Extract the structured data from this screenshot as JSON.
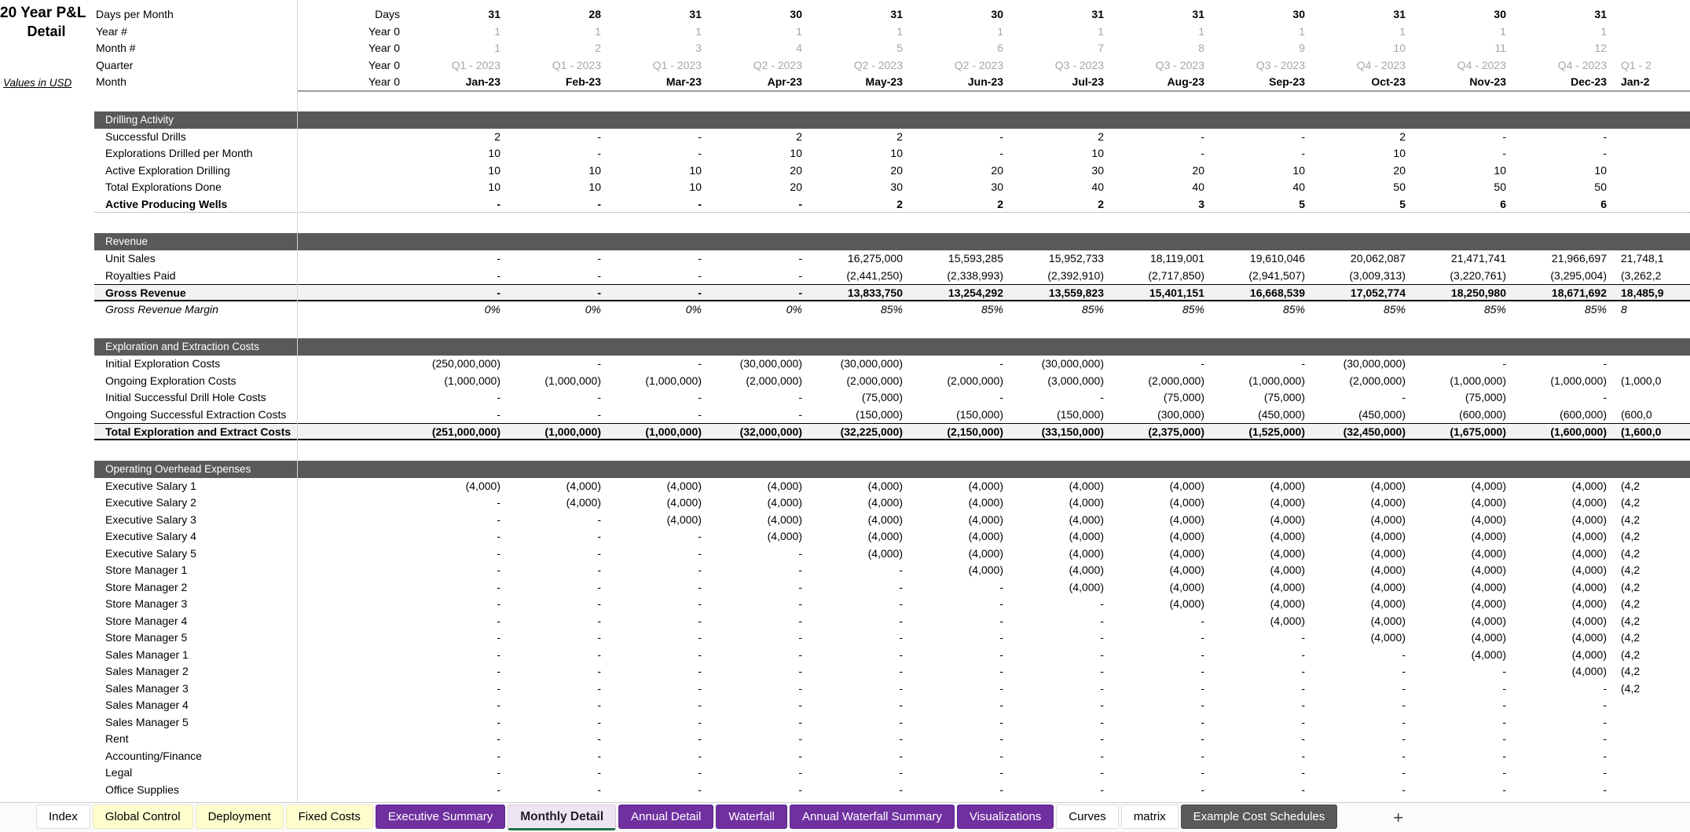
{
  "title": {
    "line1": "20 Year P&L",
    "line2": "Detail",
    "note": "Values in USD"
  },
  "colors": {
    "section_bar": "#595959",
    "total_band": "#f2f2f2",
    "muted_text": "#a6a6a6",
    "tab_purple": "#7030a0",
    "tab_yellow": "#fdfdce",
    "tab_dark": "#595959",
    "active_tab_bg": "#ede6f2",
    "active_tab_underline": "#217346"
  },
  "header_rows": [
    {
      "label": "Days per Month",
      "first": "Days",
      "style": "days",
      "values": [
        "31",
        "28",
        "31",
        "30",
        "31",
        "30",
        "31",
        "31",
        "30",
        "31",
        "30",
        "31"
      ],
      "partial": ""
    },
    {
      "label": "Year #",
      "first": "Year 0",
      "style": "gray",
      "values": [
        "1",
        "1",
        "1",
        "1",
        "1",
        "1",
        "1",
        "1",
        "1",
        "1",
        "1",
        "1"
      ],
      "partial": ""
    },
    {
      "label": "Month #",
      "first": "Year 0",
      "style": "gray",
      "values": [
        "1",
        "2",
        "3",
        "4",
        "5",
        "6",
        "7",
        "8",
        "9",
        "10",
        "11",
        "12"
      ],
      "partial": ""
    },
    {
      "label": "Quarter",
      "first": "Year 0",
      "style": "gray",
      "values": [
        "Q1 - 2023",
        "Q1 - 2023",
        "Q1 - 2023",
        "Q2 - 2023",
        "Q2 - 2023",
        "Q2 - 2023",
        "Q3 - 2023",
        "Q3 - 2023",
        "Q3 - 2023",
        "Q4 - 2023",
        "Q4 - 2023",
        "Q4 - 2023"
      ],
      "partial": "Q1 - 2"
    },
    {
      "label": "Month",
      "first": "Year 0",
      "style": "month",
      "values": [
        "Jan-23",
        "Feb-23",
        "Mar-23",
        "Apr-23",
        "May-23",
        "Jun-23",
        "Jul-23",
        "Aug-23",
        "Sep-23",
        "Oct-23",
        "Nov-23",
        "Dec-23"
      ],
      "partial": "Jan-2"
    }
  ],
  "sections": [
    {
      "title": "Drilling Activity",
      "rows": [
        {
          "label": "Successful Drills",
          "style": "normal",
          "values": [
            "2",
            "-",
            "-",
            "2",
            "2",
            "-",
            "2",
            "-",
            "-",
            "2",
            "-",
            "-"
          ],
          "partial": ""
        },
        {
          "label": "Explorations Drilled per Month",
          "style": "normal",
          "values": [
            "10",
            "-",
            "-",
            "10",
            "10",
            "-",
            "10",
            "-",
            "-",
            "10",
            "-",
            "-"
          ],
          "partial": ""
        },
        {
          "label": "Active Exploration Drilling",
          "style": "normal",
          "values": [
            "10",
            "10",
            "10",
            "20",
            "20",
            "20",
            "30",
            "20",
            "10",
            "20",
            "10",
            "10"
          ],
          "partial": ""
        },
        {
          "label": "Total Explorations Done",
          "style": "normal",
          "values": [
            "10",
            "10",
            "10",
            "20",
            "30",
            "30",
            "40",
            "40",
            "40",
            "50",
            "50",
            "50"
          ],
          "partial": ""
        },
        {
          "label": "Active Producing Wells",
          "style": "dotted",
          "values": [
            "-",
            "-",
            "-",
            "-",
            "2",
            "2",
            "2",
            "3",
            "5",
            "5",
            "6",
            "6"
          ],
          "partial": ""
        }
      ]
    },
    {
      "title": "Revenue",
      "rows": [
        {
          "label": "Unit Sales",
          "style": "normal",
          "values": [
            "-",
            "-",
            "-",
            "-",
            "16,275,000",
            "15,593,285",
            "15,952,733",
            "18,119,001",
            "19,610,046",
            "20,062,087",
            "21,471,741",
            "21,966,697"
          ],
          "partial": "21,748,1"
        },
        {
          "label": "Royalties Paid",
          "style": "normal",
          "values": [
            "-",
            "-",
            "-",
            "-",
            "(2,441,250)",
            "(2,338,993)",
            "(2,392,910)",
            "(2,717,850)",
            "(2,941,507)",
            "(3,009,313)",
            "(3,220,761)",
            "(3,295,004)"
          ],
          "partial": "(3,262,2"
        },
        {
          "label": "Gross Revenue",
          "style": "total",
          "values": [
            "-",
            "-",
            "-",
            "-",
            "13,833,750",
            "13,254,292",
            "13,559,823",
            "15,401,151",
            "16,668,539",
            "17,052,774",
            "18,250,980",
            "18,671,692"
          ],
          "partial": "18,485,9"
        },
        {
          "label": "Gross Revenue Margin",
          "style": "italic",
          "values": [
            "0%",
            "0%",
            "0%",
            "0%",
            "85%",
            "85%",
            "85%",
            "85%",
            "85%",
            "85%",
            "85%",
            "85%"
          ],
          "partial": "8"
        }
      ]
    },
    {
      "title": "Exploration and Extraction Costs",
      "rows": [
        {
          "label": "Initial Exploration Costs",
          "style": "normal",
          "values": [
            "(250,000,000)",
            "-",
            "-",
            "(30,000,000)",
            "(30,000,000)",
            "-",
            "(30,000,000)",
            "-",
            "-",
            "(30,000,000)",
            "-",
            "-"
          ],
          "partial": ""
        },
        {
          "label": "Ongoing Exploration Costs",
          "style": "normal",
          "values": [
            "(1,000,000)",
            "(1,000,000)",
            "(1,000,000)",
            "(2,000,000)",
            "(2,000,000)",
            "(2,000,000)",
            "(3,000,000)",
            "(2,000,000)",
            "(1,000,000)",
            "(2,000,000)",
            "(1,000,000)",
            "(1,000,000)"
          ],
          "partial": "(1,000,0"
        },
        {
          "label": "Initial Successful Drill Hole Costs",
          "style": "normal",
          "values": [
            "-",
            "-",
            "-",
            "-",
            "(75,000)",
            "-",
            "-",
            "(75,000)",
            "(75,000)",
            "-",
            "(75,000)",
            "-"
          ],
          "partial": ""
        },
        {
          "label": "Ongoing Successful Extraction Costs",
          "style": "normal",
          "values": [
            "-",
            "-",
            "-",
            "-",
            "(150,000)",
            "(150,000)",
            "(150,000)",
            "(300,000)",
            "(450,000)",
            "(450,000)",
            "(600,000)",
            "(600,000)"
          ],
          "partial": "(600,0"
        },
        {
          "label": "Total Exploration and Extract Costs",
          "style": "total",
          "values": [
            "(251,000,000)",
            "(1,000,000)",
            "(1,000,000)",
            "(32,000,000)",
            "(32,225,000)",
            "(2,150,000)",
            "(33,150,000)",
            "(2,375,000)",
            "(1,525,000)",
            "(32,450,000)",
            "(1,675,000)",
            "(1,600,000)"
          ],
          "partial": "(1,600,0"
        }
      ]
    },
    {
      "title": "Operating Overhead Expenses",
      "rows": [
        {
          "label": "Executive Salary 1",
          "style": "normal",
          "values": [
            "(4,000)",
            "(4,000)",
            "(4,000)",
            "(4,000)",
            "(4,000)",
            "(4,000)",
            "(4,000)",
            "(4,000)",
            "(4,000)",
            "(4,000)",
            "(4,000)",
            "(4,000)"
          ],
          "partial": "(4,2"
        },
        {
          "label": "Executive Salary 2",
          "style": "normal",
          "values": [
            "-",
            "(4,000)",
            "(4,000)",
            "(4,000)",
            "(4,000)",
            "(4,000)",
            "(4,000)",
            "(4,000)",
            "(4,000)",
            "(4,000)",
            "(4,000)",
            "(4,000)"
          ],
          "partial": "(4,2"
        },
        {
          "label": "Executive Salary 3",
          "style": "normal",
          "values": [
            "-",
            "-",
            "(4,000)",
            "(4,000)",
            "(4,000)",
            "(4,000)",
            "(4,000)",
            "(4,000)",
            "(4,000)",
            "(4,000)",
            "(4,000)",
            "(4,000)"
          ],
          "partial": "(4,2"
        },
        {
          "label": "Executive Salary 4",
          "style": "normal",
          "values": [
            "-",
            "-",
            "-",
            "(4,000)",
            "(4,000)",
            "(4,000)",
            "(4,000)",
            "(4,000)",
            "(4,000)",
            "(4,000)",
            "(4,000)",
            "(4,000)"
          ],
          "partial": "(4,2"
        },
        {
          "label": "Executive Salary 5",
          "style": "normal",
          "values": [
            "-",
            "-",
            "-",
            "-",
            "(4,000)",
            "(4,000)",
            "(4,000)",
            "(4,000)",
            "(4,000)",
            "(4,000)",
            "(4,000)",
            "(4,000)"
          ],
          "partial": "(4,2"
        },
        {
          "label": "Store Manager 1",
          "style": "normal",
          "values": [
            "-",
            "-",
            "-",
            "-",
            "-",
            "(4,000)",
            "(4,000)",
            "(4,000)",
            "(4,000)",
            "(4,000)",
            "(4,000)",
            "(4,000)"
          ],
          "partial": "(4,2"
        },
        {
          "label": "Store Manager 2",
          "style": "normal",
          "values": [
            "-",
            "-",
            "-",
            "-",
            "-",
            "-",
            "(4,000)",
            "(4,000)",
            "(4,000)",
            "(4,000)",
            "(4,000)",
            "(4,000)"
          ],
          "partial": "(4,2"
        },
        {
          "label": "Store Manager 3",
          "style": "normal",
          "values": [
            "-",
            "-",
            "-",
            "-",
            "-",
            "-",
            "-",
            "(4,000)",
            "(4,000)",
            "(4,000)",
            "(4,000)",
            "(4,000)"
          ],
          "partial": "(4,2"
        },
        {
          "label": "Store Manager 4",
          "style": "normal",
          "values": [
            "-",
            "-",
            "-",
            "-",
            "-",
            "-",
            "-",
            "-",
            "(4,000)",
            "(4,000)",
            "(4,000)",
            "(4,000)"
          ],
          "partial": "(4,2"
        },
        {
          "label": "Store Manager 5",
          "style": "normal",
          "values": [
            "-",
            "-",
            "-",
            "-",
            "-",
            "-",
            "-",
            "-",
            "-",
            "(4,000)",
            "(4,000)",
            "(4,000)"
          ],
          "partial": "(4,2"
        },
        {
          "label": "Sales Manager 1",
          "style": "normal",
          "values": [
            "-",
            "-",
            "-",
            "-",
            "-",
            "-",
            "-",
            "-",
            "-",
            "-",
            "(4,000)",
            "(4,000)"
          ],
          "partial": "(4,2"
        },
        {
          "label": "Sales Manager 2",
          "style": "normal",
          "values": [
            "-",
            "-",
            "-",
            "-",
            "-",
            "-",
            "-",
            "-",
            "-",
            "-",
            "-",
            "(4,000)"
          ],
          "partial": "(4,2"
        },
        {
          "label": "Sales Manager 3",
          "style": "normal",
          "values": [
            "-",
            "-",
            "-",
            "-",
            "-",
            "-",
            "-",
            "-",
            "-",
            "-",
            "-",
            "-"
          ],
          "partial": "(4,2"
        },
        {
          "label": "Sales Manager 4",
          "style": "normal",
          "values": [
            "-",
            "-",
            "-",
            "-",
            "-",
            "-",
            "-",
            "-",
            "-",
            "-",
            "-",
            "-"
          ],
          "partial": ""
        },
        {
          "label": "Sales Manager 5",
          "style": "normal",
          "values": [
            "-",
            "-",
            "-",
            "-",
            "-",
            "-",
            "-",
            "-",
            "-",
            "-",
            "-",
            "-"
          ],
          "partial": ""
        },
        {
          "label": "Rent",
          "style": "normal",
          "values": [
            "-",
            "-",
            "-",
            "-",
            "-",
            "-",
            "-",
            "-",
            "-",
            "-",
            "-",
            "-"
          ],
          "partial": ""
        },
        {
          "label": "Accounting/Finance",
          "style": "normal",
          "values": [
            "-",
            "-",
            "-",
            "-",
            "-",
            "-",
            "-",
            "-",
            "-",
            "-",
            "-",
            "-"
          ],
          "partial": ""
        },
        {
          "label": "Legal",
          "style": "normal",
          "values": [
            "-",
            "-",
            "-",
            "-",
            "-",
            "-",
            "-",
            "-",
            "-",
            "-",
            "-",
            "-"
          ],
          "partial": ""
        },
        {
          "label": "Office Supplies",
          "style": "normal",
          "values": [
            "-",
            "-",
            "-",
            "-",
            "-",
            "-",
            "-",
            "-",
            "-",
            "-",
            "-",
            "-"
          ],
          "partial": ""
        }
      ]
    }
  ],
  "tabs": [
    {
      "label": "Index",
      "color": "white"
    },
    {
      "label": "Global Control",
      "color": "yellow"
    },
    {
      "label": "Deployment",
      "color": "yellow"
    },
    {
      "label": "Fixed Costs",
      "color": "yellow"
    },
    {
      "label": "Executive Summary",
      "color": "purple"
    },
    {
      "label": "Monthly Detail",
      "color": "active"
    },
    {
      "label": "Annual Detail",
      "color": "purple"
    },
    {
      "label": "Waterfall",
      "color": "purple"
    },
    {
      "label": "Annual Waterfall Summary",
      "color": "purple"
    },
    {
      "label": "Visualizations",
      "color": "purple"
    },
    {
      "label": "Curves",
      "color": "white"
    },
    {
      "label": "matrix",
      "color": "white"
    },
    {
      "label": "Example Cost Schedules",
      "color": "dark"
    }
  ],
  "add_sheet_label": "+"
}
